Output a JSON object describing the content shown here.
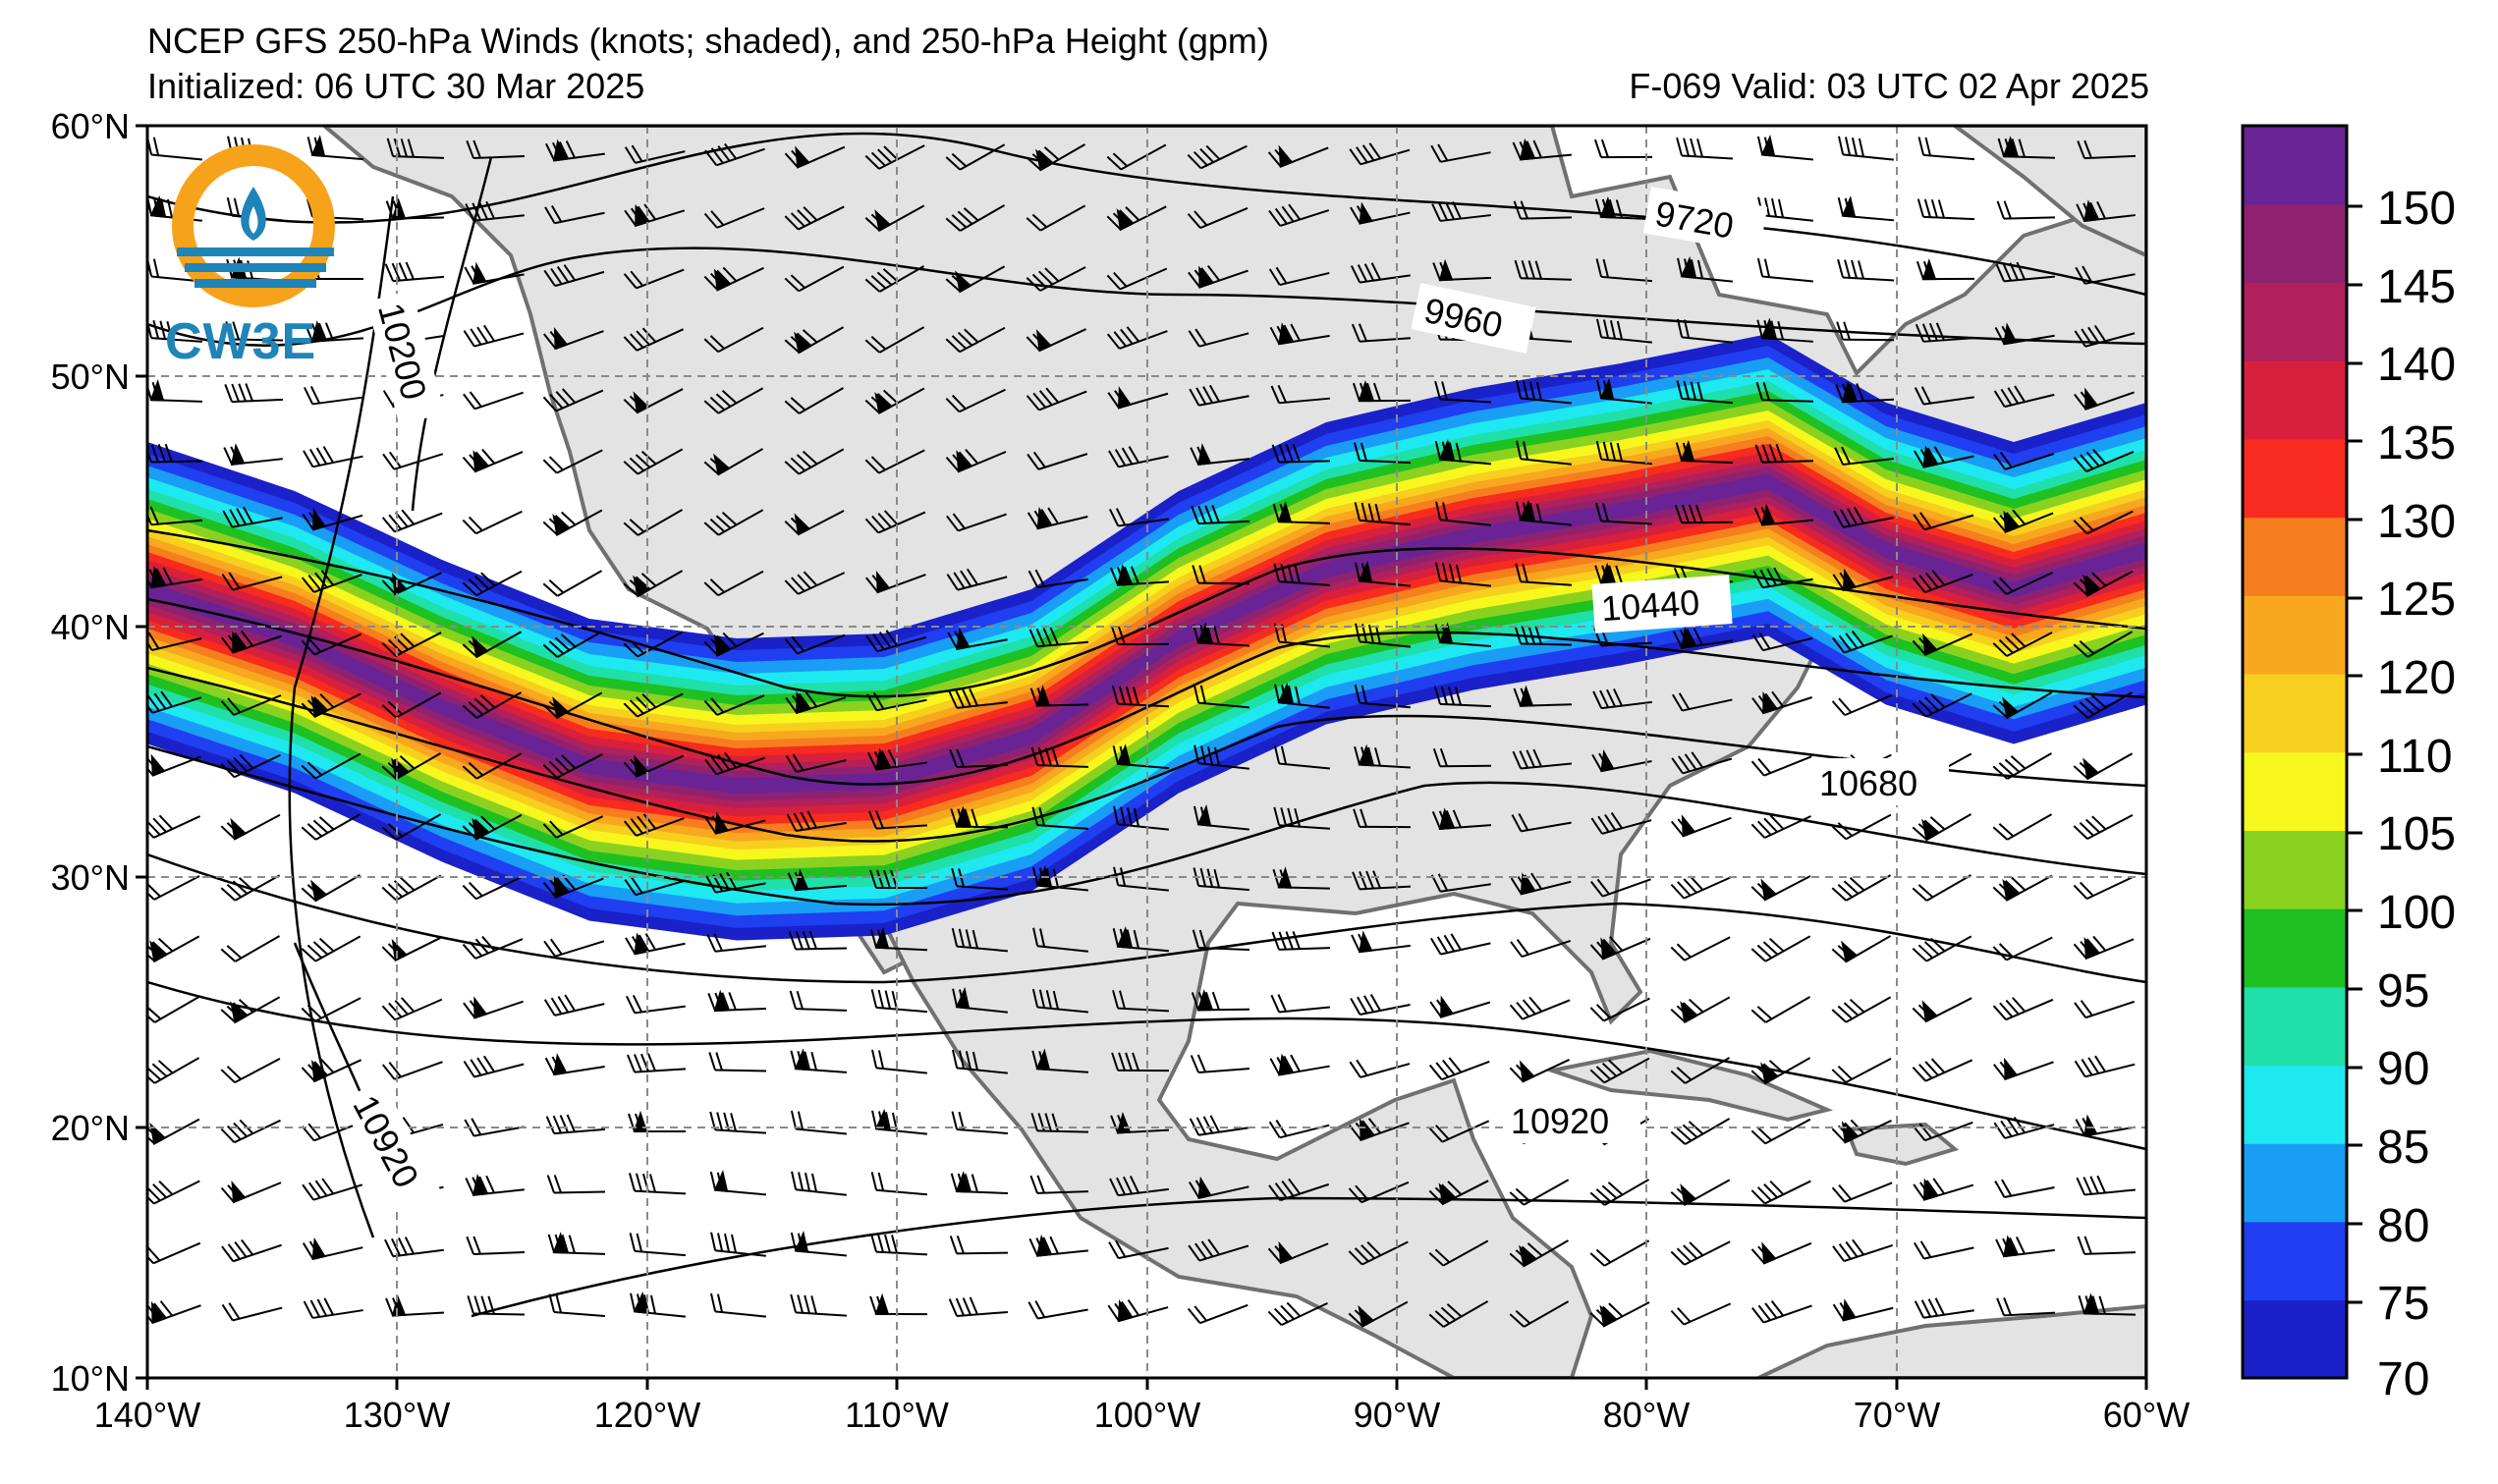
{
  "header": {
    "title": "NCEP GFS 250-hPa Winds (knots; shaded), and 250-hPa Height (gpm)",
    "initialized": "Initialized: 06 UTC 30 Mar 2025",
    "valid": "F-069  Valid: 03 UTC 02 Apr 2025"
  },
  "logo": {
    "text": "CW3E",
    "accent": "#f7a21b",
    "primary": "#1f84b8"
  },
  "axes": {
    "lon_range": [
      -140,
      -60
    ],
    "lat_range": [
      10,
      60
    ],
    "lon_ticks": [
      "140°W",
      "130°W",
      "120°W",
      "110°W",
      "100°W",
      "90°W",
      "80°W",
      "70°W",
      "60°W"
    ],
    "lat_ticks": [
      "60°N",
      "50°N",
      "40°N",
      "30°N",
      "20°N",
      "10°N"
    ]
  },
  "colorbar": {
    "units": "knots",
    "levels": [
      70,
      75,
      80,
      85,
      90,
      95,
      100,
      105,
      110,
      120,
      125,
      130,
      135,
      140,
      145,
      150
    ],
    "labels": [
      "150",
      "145",
      "140",
      "135",
      "130",
      "125",
      "120",
      "110",
      "105",
      "100",
      "95",
      "90",
      "85",
      "80",
      "75",
      "70"
    ],
    "colors": [
      "#1a21c9",
      "#1f3ff0",
      "#1a9df5",
      "#1ee8f0",
      "#1ee0a8",
      "#1fc022",
      "#8ad21f",
      "#f7f71e",
      "#f7cf1e",
      "#f7a81e",
      "#f77e1e",
      "#f72b1e",
      "#d8203c",
      "#b0205c",
      "#8e2270",
      "#6a2394"
    ]
  },
  "contours": {
    "labels": [
      "9720",
      "9960",
      "10200",
      "10440",
      "10680",
      "10920",
      "10920"
    ]
  },
  "map_colors": {
    "land": "#e3e3e3",
    "ocean": "#ffffff",
    "coast": "#707070"
  }
}
